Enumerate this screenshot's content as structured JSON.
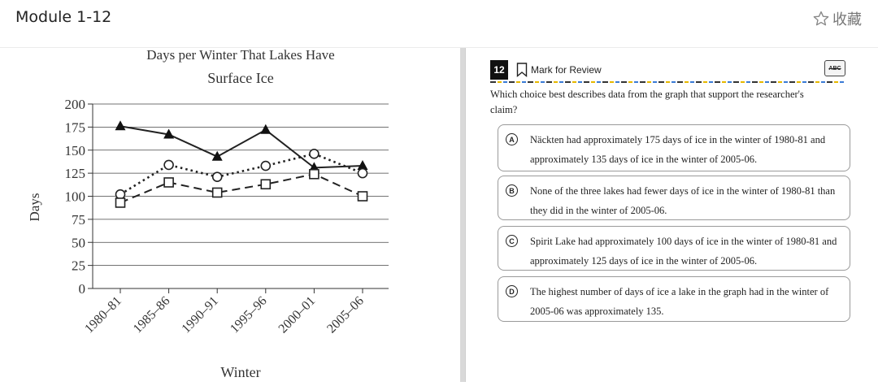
{
  "header": {
    "module_title": "Module 1-12",
    "favorite_label": "收藏"
  },
  "chart_title_top": "Days per Winter That Lakes Have",
  "chart_data": {
    "type": "line",
    "title": "Surface Ice",
    "xlabel": "Winter",
    "ylabel": "Days",
    "categories": [
      "1980–81",
      "1985–86",
      "1990–91",
      "1995–96",
      "2000–01",
      "2005–06"
    ],
    "ylim": [
      0,
      200
    ],
    "yticks": [
      0,
      25,
      50,
      75,
      100,
      125,
      150,
      175,
      200
    ],
    "grid": "horizontal",
    "series": [
      {
        "marker": "triangle-filled",
        "line": "solid",
        "values": [
          176,
          167,
          143,
          172,
          131,
          133
        ]
      },
      {
        "marker": "circle-open",
        "line": "dotted",
        "values": [
          102,
          134,
          121,
          133,
          146,
          125
        ]
      },
      {
        "marker": "square-open",
        "line": "dashed",
        "values": [
          93,
          115,
          104,
          113,
          124,
          100
        ]
      }
    ]
  },
  "question": {
    "number": "12",
    "mark_review_label": "Mark for Review",
    "abc_label": "ABC",
    "prompt": "Which choice best describes data from the graph that support the researcher's claim?",
    "choices": [
      {
        "letter": "A",
        "text": "Näckten had approximately 175 days of ice in the winter of 1980-81 and approximately 135 days of ice in the winter of 2005-06."
      },
      {
        "letter": "B",
        "text": "None of the three lakes had fewer days of ice in the winter of 1980-81 than they did in the winter of 2005-06."
      },
      {
        "letter": "C",
        "text": "Spirit Lake had approximately 100 days of ice in the winter of 1980-81 and approximately 125 days of ice in the winter of 2005-06."
      },
      {
        "letter": "D",
        "text": "The highest number of days of ice a lake in the graph had in the winter of 2005-06 was approximately 135."
      }
    ]
  }
}
